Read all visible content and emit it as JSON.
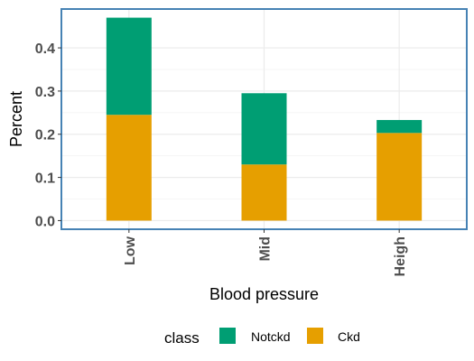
{
  "chart_data": {
    "type": "bar",
    "stacked": true,
    "categories": [
      "Low",
      "Mid",
      "Heigh"
    ],
    "series": [
      {
        "name": "Ckd",
        "color": "#E69F00",
        "values": [
          0.245,
          0.13,
          0.203
        ]
      },
      {
        "name": "Notckd",
        "color": "#009E73",
        "values": [
          0.225,
          0.165,
          0.03
        ]
      }
    ],
    "xlabel": "Blood pressure",
    "ylabel": "Percent",
    "ylim": [
      -0.02,
      0.49
    ],
    "yticks": [
      0.0,
      0.1,
      0.2,
      0.3,
      0.4
    ],
    "ytick_labels": [
      "0.0",
      "0.1",
      "0.2",
      "0.3",
      "0.4"
    ],
    "grid": true,
    "panel_border_color": "#4682B4",
    "legend": {
      "title": "class",
      "placement": "bottom",
      "entries": [
        {
          "label": "Notckd",
          "color": "#009E73"
        },
        {
          "label": "Ckd",
          "color": "#E69F00"
        }
      ]
    }
  }
}
